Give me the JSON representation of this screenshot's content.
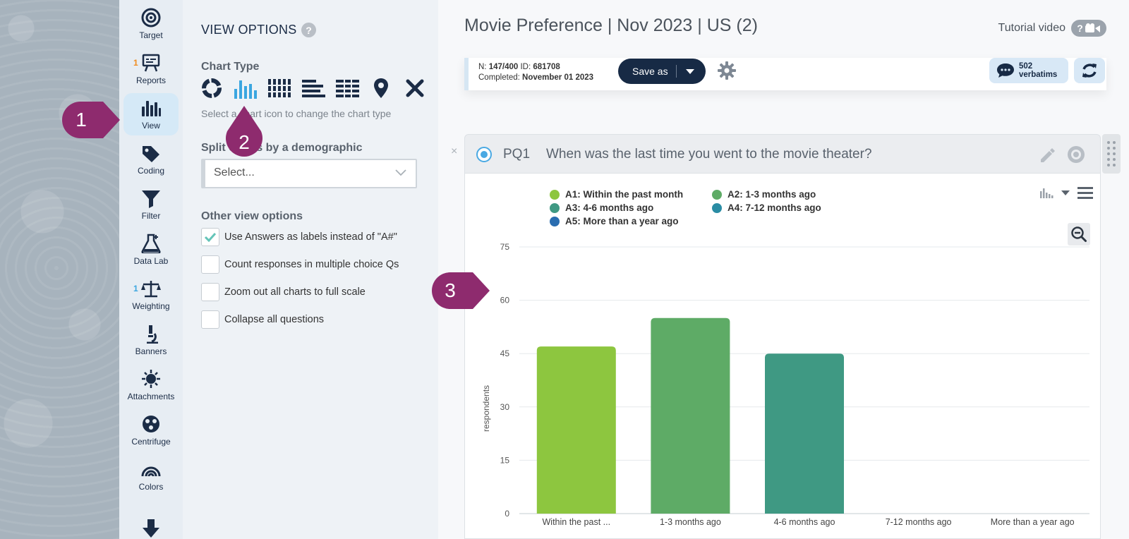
{
  "nav": {
    "items": [
      {
        "label": "Target",
        "icon": "target-icon",
        "badge": ""
      },
      {
        "label": "Reports",
        "icon": "reports-icon",
        "badge": "1"
      },
      {
        "label": "View",
        "icon": "view-chart-icon",
        "badge": "",
        "active": true
      },
      {
        "label": "Coding",
        "icon": "tag-icon",
        "badge": ""
      },
      {
        "label": "Filter",
        "icon": "filter-icon",
        "badge": ""
      },
      {
        "label": "Data Lab",
        "icon": "flask-icon",
        "badge": ""
      },
      {
        "label": "Weighting",
        "icon": "scale-icon",
        "badge": "1"
      },
      {
        "label": "Banners",
        "icon": "microscope-icon",
        "badge": ""
      },
      {
        "label": "Attachments",
        "icon": "sun-icon",
        "badge": ""
      },
      {
        "label": "Centrifuge",
        "icon": "centrifuge-icon",
        "badge": ""
      },
      {
        "label": "Colors",
        "icon": "rainbow-icon",
        "badge": ""
      }
    ]
  },
  "options": {
    "title": "VIEW OPTIONS",
    "help": "?",
    "chart_type_title": "Chart Type",
    "chart_type_hint": "Select a chart icon to change the chart type",
    "split_title": "Split charts by a demographic",
    "split_placeholder": "Select...",
    "other_title": "Other view options",
    "checkboxes": [
      {
        "label": "Use Answers as labels instead of \"A#\"",
        "checked": true
      },
      {
        "label": "Count responses in multiple choice Qs",
        "checked": false
      },
      {
        "label": "Zoom out all charts to full scale",
        "checked": false
      },
      {
        "label": "Collapse all questions",
        "checked": false
      }
    ]
  },
  "header": {
    "title": "Movie Preference | Nov 2023 | US (2)",
    "tutorial_label": "Tutorial video",
    "tutorial_badge": "?",
    "n_label": "N:",
    "n_value": "147/400",
    "id_label": "ID:",
    "id_value": "681708",
    "completed_label": "Completed:",
    "completed_value": "November 01 2023",
    "save_label": "Save as",
    "verbatims_count": "502",
    "verbatims_label": "verbatims"
  },
  "question": {
    "id": "PQ1",
    "text": "When was the last time you went to the movie theater?",
    "close": "×"
  },
  "callouts": {
    "one": "1",
    "two": "2",
    "three": "3"
  },
  "colors": {
    "a1": "#8dc63f",
    "a2": "#5eab66",
    "a3": "#3f9983",
    "a4": "#2a8ca4",
    "a5": "#2a6db0",
    "callout": "#8e2b6e"
  },
  "chart_data": {
    "type": "bar",
    "categories": [
      "Within the past ...",
      "1-3 months ago",
      "4-6 months ago",
      "7-12 months ago",
      "More than a year ago"
    ],
    "values": [
      47,
      55,
      45,
      0,
      0
    ],
    "colors": [
      "#8dc63f",
      "#5eab66",
      "#3f9983",
      "#2a8ca4",
      "#2a6db0"
    ],
    "legend": [
      "A1: Within the past month",
      "A2: 1-3 months ago",
      "A3: 4-6 months ago",
      "A4: 7-12 months ago",
      "A5: More than a year ago"
    ],
    "ylabel": "respondents",
    "yticks": [
      0,
      15,
      30,
      45,
      60,
      75
    ],
    "ylim": [
      0,
      75
    ],
    "grid": true
  }
}
